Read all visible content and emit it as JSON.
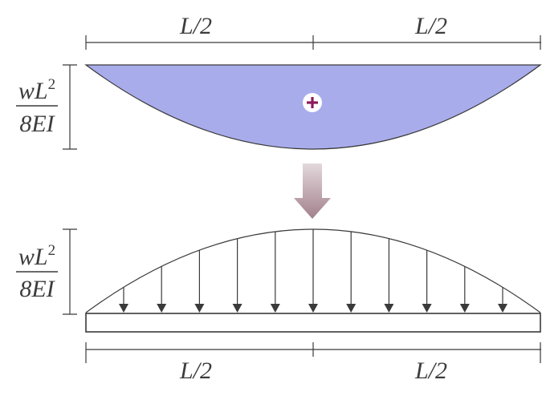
{
  "top_diagram": {
    "span_left_label": "L/2",
    "span_right_label": "L/2",
    "height_label": {
      "numerator_base": "wL",
      "numerator_exponent": "2",
      "denominator": "8EI"
    },
    "sign_symbol": "+",
    "fill_color": "#a9aceb",
    "sign_color": "#8c1a5a"
  },
  "transition_arrow": {
    "color_top": "#e3d8dc",
    "color_bottom": "#a2808c"
  },
  "bottom_diagram": {
    "span_left_label": "L/2",
    "span_right_label": "L/2",
    "height_label": {
      "numerator_base": "wL",
      "numerator_exponent": "2",
      "denominator": "8EI"
    },
    "load_arrow_count": 11
  },
  "colors": {
    "line": "#3a3a3a",
    "text": "#3c3c3c"
  }
}
